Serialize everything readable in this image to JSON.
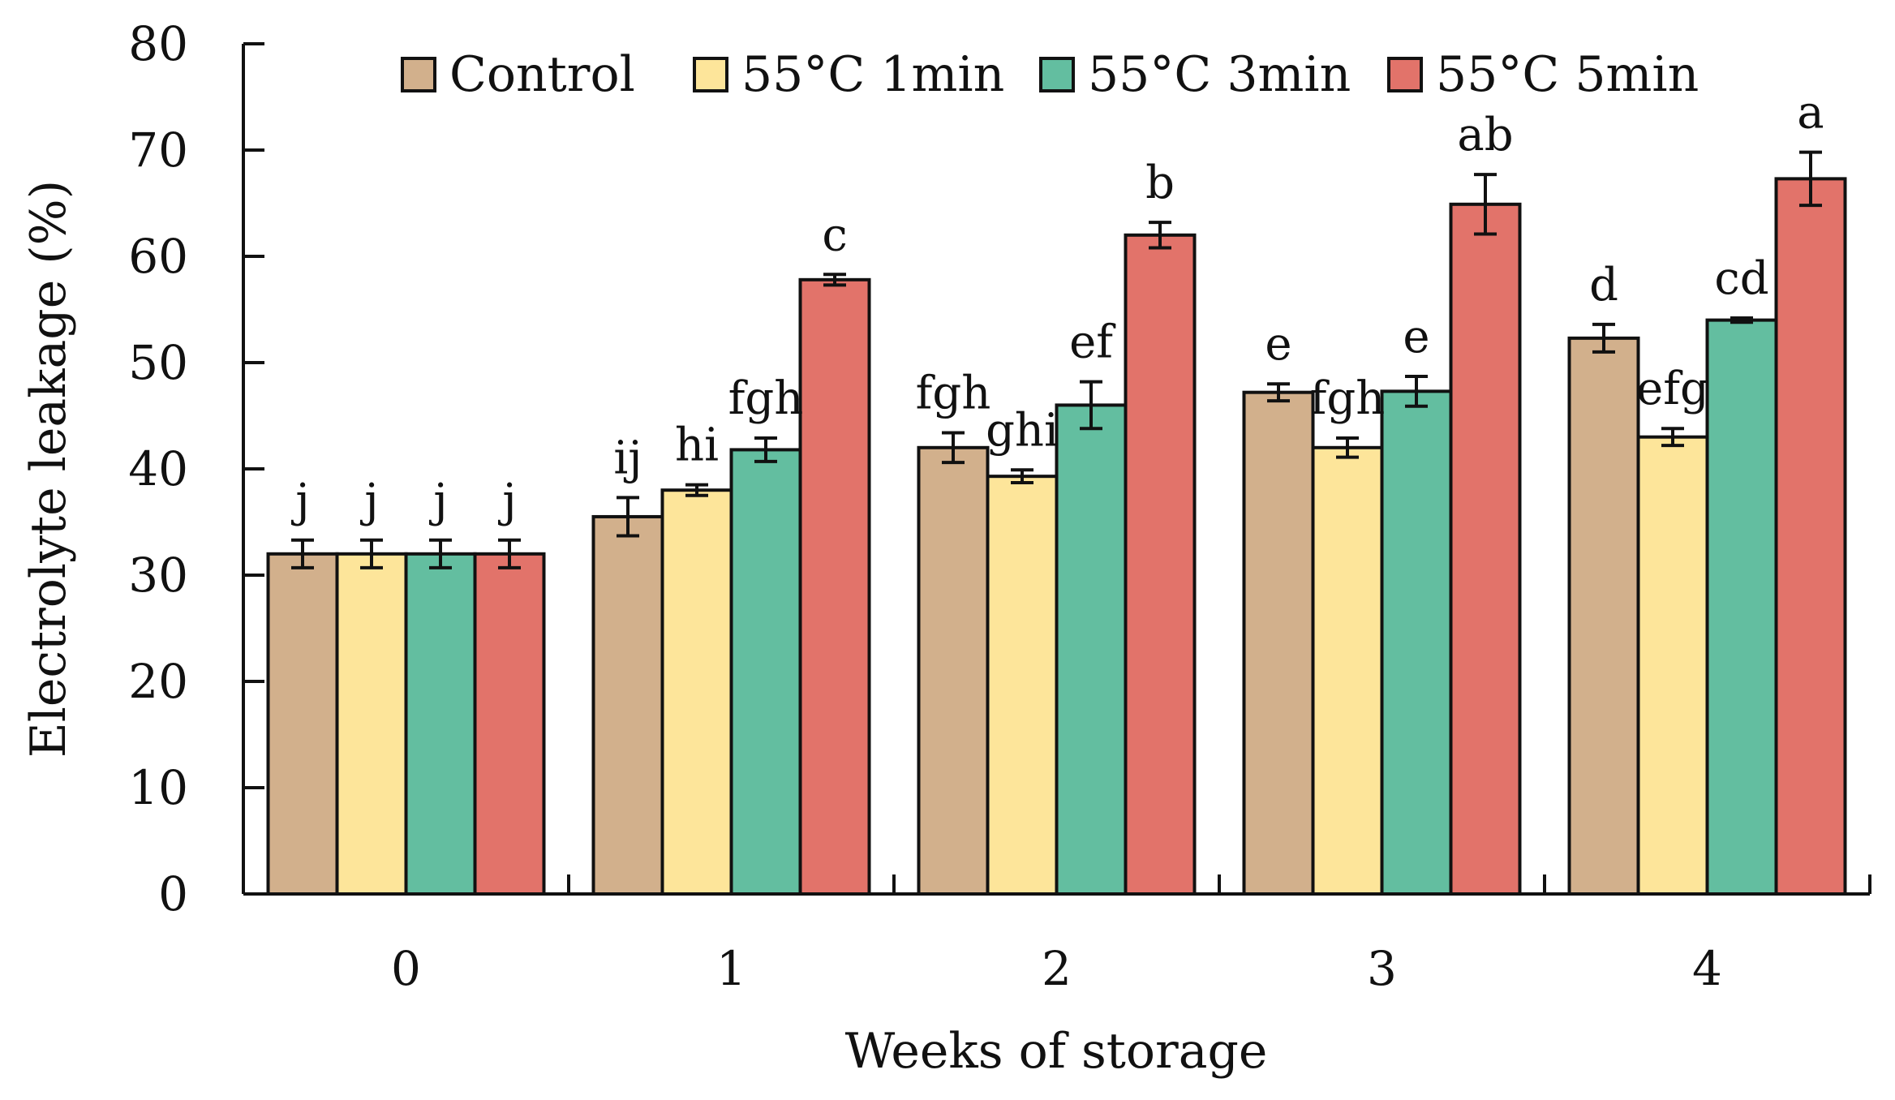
{
  "chart_data": {
    "type": "bar",
    "title": "",
    "xlabel": "Weeks of storage",
    "ylabel": "Electrolyte leakage (%)",
    "ylim": [
      0,
      80
    ],
    "yticks": [
      "0",
      "10",
      "20",
      "30",
      "40",
      "50",
      "60",
      "70",
      "80"
    ],
    "categories": [
      "0",
      "1",
      "2",
      "3",
      "4"
    ],
    "legend_position": "top",
    "series": [
      {
        "name": "Control",
        "color": "#D2B08C",
        "values": [
          32.0,
          35.5,
          42.0,
          47.2,
          52.3
        ],
        "errors": [
          1.3,
          1.8,
          1.4,
          0.8,
          1.3
        ],
        "labels": [
          "j",
          "ij",
          "fgh",
          "e",
          "d"
        ]
      },
      {
        "name": "55°C 1min",
        "color": "#FDE59A",
        "values": [
          32.0,
          38.0,
          39.3,
          42.0,
          43.0
        ],
        "errors": [
          1.3,
          0.5,
          0.6,
          0.9,
          0.8
        ],
        "labels": [
          "j",
          "hi",
          "ghi",
          "fgh",
          "efg"
        ]
      },
      {
        "name": "55°C 3min",
        "color": "#63BEA0",
        "values": [
          32.0,
          41.8,
          46.0,
          47.3,
          54.0
        ],
        "errors": [
          1.3,
          1.1,
          2.2,
          1.4,
          0.2
        ],
        "labels": [
          "j",
          "fgh",
          "ef",
          "e",
          "cd"
        ]
      },
      {
        "name": "55°C 5min",
        "color": "#E2736A",
        "values": [
          32.0,
          57.8,
          62.0,
          64.9,
          67.3
        ],
        "errors": [
          1.3,
          0.5,
          1.2,
          2.8,
          2.5
        ],
        "labels": [
          "j",
          "c",
          "b",
          "ab",
          "a"
        ]
      }
    ]
  }
}
